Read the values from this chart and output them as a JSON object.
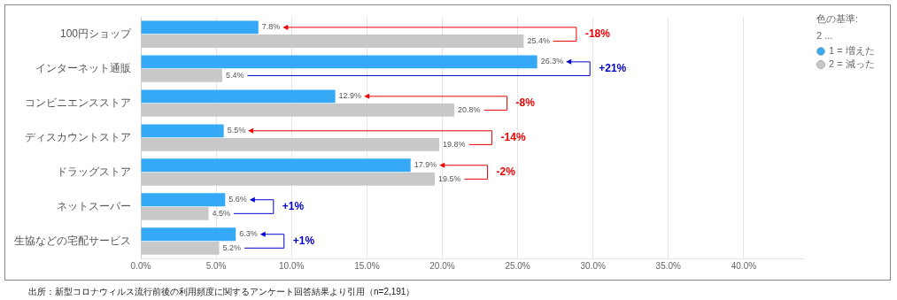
{
  "chart_data": {
    "type": "bar",
    "orientation": "horizontal",
    "categories": [
      "100円ショップ",
      "インターネット通販",
      "コンビニエンスストア",
      "ディスカウントストア",
      "ドラッグストア",
      "ネットスーパー",
      "生協などの宅配サービス"
    ],
    "series": [
      {
        "name": "1 = 増えた",
        "color": "#35a9f5",
        "values": [
          7.8,
          26.3,
          12.9,
          5.5,
          17.9,
          5.6,
          6.3
        ],
        "value_labels": [
          "7.8%",
          "26.3%",
          "12.9%",
          "5.5%",
          "17.9%",
          "5.6%",
          "6.3%"
        ]
      },
      {
        "name": "2 = 減った",
        "color": "#c8c8c8",
        "values": [
          25.4,
          5.4,
          20.8,
          19.8,
          19.5,
          4.5,
          5.2
        ],
        "value_labels": [
          "25.4%",
          "5.4%",
          "20.8%",
          "19.8%",
          "19.5%",
          "4.5%",
          "5.2%"
        ]
      }
    ],
    "xlim": [
      0,
      44
    ],
    "xticks": [
      {
        "value": 0,
        "label": "0.0%"
      },
      {
        "value": 5,
        "label": "5.0%"
      },
      {
        "value": 10,
        "label": "10.0%"
      },
      {
        "value": 15,
        "label": "15.0%"
      },
      {
        "value": 20,
        "label": "20.0%"
      },
      {
        "value": 25,
        "label": "25.0%"
      },
      {
        "value": 30,
        "label": "30.0%"
      },
      {
        "value": 35,
        "label": "35.0%"
      },
      {
        "value": 40,
        "label": "40.0%"
      }
    ],
    "grid": "x",
    "legend": "top right",
    "legend_title": "色の基準: 2 ...",
    "annotations": [
      "-18%",
      "+21%",
      "-8%",
      "-14%",
      "-2%",
      "+1%",
      "+1%",
      "出所：新型コロナウィルス流行前後の利用頻度に関するアンケート回答結果より引用（n=2,191）"
    ]
  }
}
